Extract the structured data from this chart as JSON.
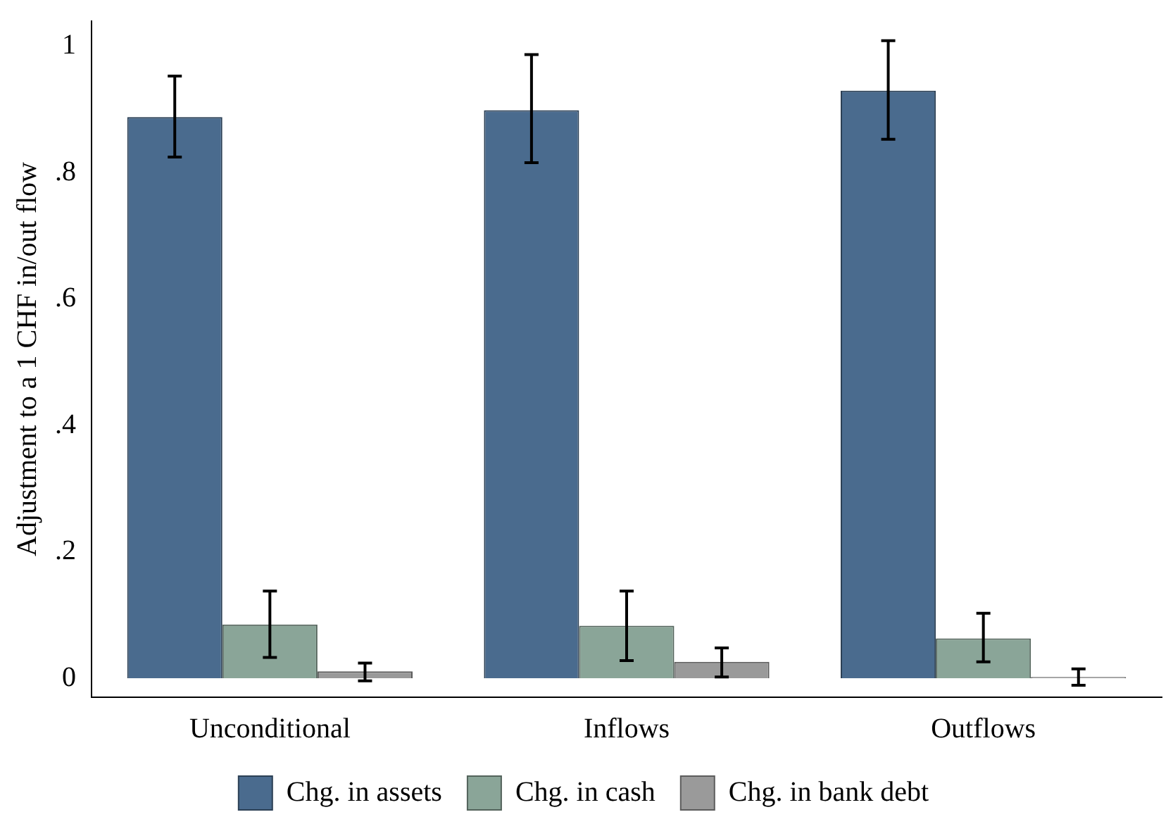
{
  "chart_data": {
    "type": "bar",
    "ylabel": "Adjustment to a 1 CHF in/out flow",
    "categories": [
      "Unconditional",
      "Inflows",
      "Outflows"
    ],
    "series": [
      {
        "name": "Chg. in assets",
        "color": "#4a6b8e",
        "values": [
          0.888,
          0.899,
          0.93
        ],
        "errors": [
          [
            0.825,
            0.953
          ],
          [
            0.816,
            0.987
          ],
          [
            0.853,
            1.009
          ]
        ]
      },
      {
        "name": "Chg. in cash",
        "color": "#8aa598",
        "values": [
          0.085,
          0.083,
          0.063
        ],
        "errors": [
          [
            0.033,
            0.138
          ],
          [
            0.028,
            0.138
          ],
          [
            0.026,
            0.103
          ]
        ]
      },
      {
        "name": "Chg. in bank debt",
        "color": "#9a9a9a",
        "values": [
          0.011,
          0.026,
          0.002
        ],
        "errors": [
          [
            -0.004,
            0.024
          ],
          [
            0.002,
            0.048
          ],
          [
            -0.011,
            0.015
          ]
        ]
      }
    ],
    "ylim": [
      -0.03,
      1.04
    ],
    "yticks": [
      {
        "value": 0,
        "label": "0"
      },
      {
        "value": 0.2,
        "label": ".2"
      },
      {
        "value": 0.4,
        "label": ".4"
      },
      {
        "value": 0.6,
        "label": ".6"
      },
      {
        "value": 0.8,
        "label": ".8"
      },
      {
        "value": 1,
        "label": "1"
      }
    ],
    "grid": false,
    "legend": "bottom"
  }
}
